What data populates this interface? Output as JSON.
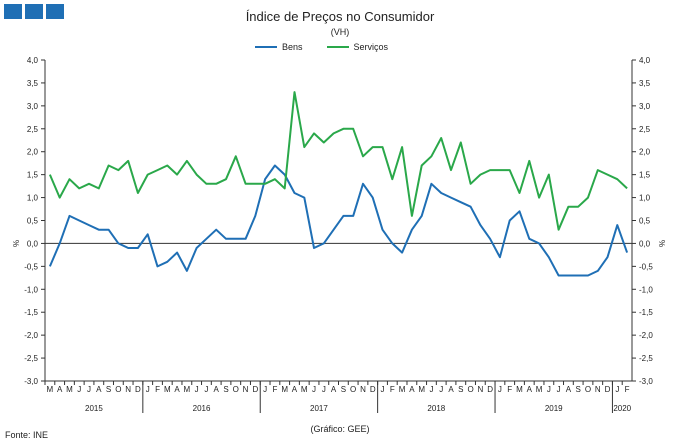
{
  "header": {
    "title": "Índice de Preços no Consumidor",
    "subtitle": "(VH)"
  },
  "footer": {
    "source": "Fonte: INE",
    "credit": "(Gráfico: GEE)"
  },
  "axis_unit": "%",
  "colors": {
    "bens": "#1f6fb5",
    "servicos": "#2aa84a",
    "axis": "#333333"
  },
  "chart_data": {
    "type": "line",
    "title": "Índice de Preços no Consumidor",
    "subtitle": "(VH)",
    "ylabel": "%",
    "ylim": [
      -3.0,
      4.0
    ],
    "ytick_step": 0.5,
    "grid": false,
    "legend_position": "top",
    "x_month_labels": [
      "M",
      "A",
      "M",
      "J",
      "J",
      "A",
      "S",
      "O",
      "N",
      "D",
      "J",
      "F",
      "M",
      "A",
      "M",
      "J",
      "J",
      "A",
      "S",
      "O",
      "N",
      "D",
      "J",
      "F",
      "M",
      "A",
      "M",
      "J",
      "J",
      "A",
      "S",
      "O",
      "N",
      "D",
      "J",
      "F",
      "M",
      "A",
      "M",
      "J",
      "J",
      "A",
      "S",
      "O",
      "N",
      "D",
      "J",
      "F",
      "M",
      "A",
      "M",
      "J",
      "J",
      "A",
      "S",
      "O",
      "N",
      "D",
      "J",
      "F"
    ],
    "x_year_labels": [
      {
        "label": "2015",
        "start": 0,
        "end": 9
      },
      {
        "label": "2016",
        "start": 10,
        "end": 21
      },
      {
        "label": "2017",
        "start": 22,
        "end": 33
      },
      {
        "label": "2018",
        "start": 34,
        "end": 45
      },
      {
        "label": "2019",
        "start": 46,
        "end": 57
      },
      {
        "label": "2020",
        "start": 58,
        "end": 59
      }
    ],
    "series": [
      {
        "name": "Bens",
        "color": "#1f6fb5",
        "values": [
          -0.5,
          0.0,
          0.6,
          0.5,
          0.4,
          0.3,
          0.3,
          0.0,
          -0.1,
          -0.1,
          0.2,
          -0.5,
          -0.4,
          -0.2,
          -0.6,
          -0.1,
          0.1,
          0.3,
          0.1,
          0.1,
          0.1,
          0.6,
          1.4,
          1.7,
          1.5,
          1.1,
          1.0,
          -0.1,
          0.0,
          0.3,
          0.6,
          0.6,
          1.3,
          1.0,
          0.3,
          0.0,
          -0.2,
          0.3,
          0.6,
          1.3,
          1.1,
          1.0,
          0.9,
          0.8,
          0.4,
          0.1,
          -0.3,
          0.5,
          0.7,
          0.1,
          0.0,
          -0.3,
          -0.7,
          -0.7,
          -0.7,
          -0.7,
          -0.6,
          -0.3,
          0.4,
          -0.2
        ]
      },
      {
        "name": "Serviços",
        "color": "#2aa84a",
        "values": [
          1.5,
          1.0,
          1.4,
          1.2,
          1.3,
          1.2,
          1.7,
          1.6,
          1.8,
          1.1,
          1.5,
          1.6,
          1.7,
          1.5,
          1.8,
          1.5,
          1.3,
          1.3,
          1.4,
          1.9,
          1.3,
          1.3,
          1.3,
          1.4,
          1.2,
          3.3,
          2.1,
          2.4,
          2.2,
          2.4,
          2.5,
          2.5,
          1.9,
          2.1,
          2.1,
          1.4,
          2.1,
          0.6,
          1.7,
          1.9,
          2.3,
          1.6,
          2.2,
          1.3,
          1.5,
          1.6,
          1.6,
          1.6,
          1.1,
          1.8,
          1.0,
          1.5,
          0.3,
          0.8,
          0.8,
          1.0,
          1.6,
          1.5,
          1.4,
          1.2
        ]
      }
    ]
  }
}
